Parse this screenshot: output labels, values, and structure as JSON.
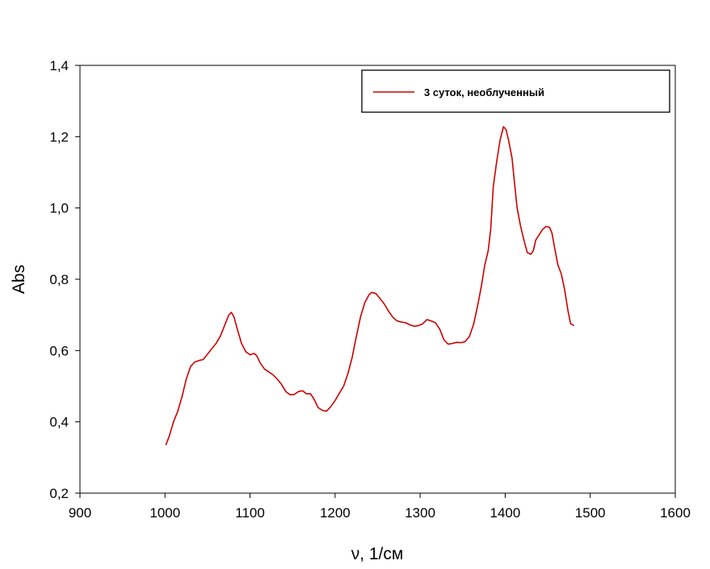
{
  "chart_data": {
    "type": "line",
    "xlabel": "ν, 1/см",
    "ylabel": "Abs",
    "xlim": [
      900,
      1600
    ],
    "ylim": [
      0.2,
      1.4
    ],
    "x_ticks": [
      900,
      1000,
      1100,
      1200,
      1300,
      1400,
      1500,
      1600
    ],
    "x_tick_labels": [
      "900",
      "1000",
      "1100",
      "1200",
      "1300",
      "1400",
      "1500",
      "1600"
    ],
    "y_ticks": [
      0.2,
      0.4,
      0.6,
      0.8,
      1.0,
      1.2,
      1.4
    ],
    "y_tick_labels": [
      "0,2",
      "0,4",
      "0,6",
      "0,8",
      "1,0",
      "1,2",
      "1,4"
    ],
    "grid": false,
    "legend_position": "top-right",
    "series": [
      {
        "name": "3 суток, необлученный",
        "color": "#cc0000",
        "points": [
          [
            1001,
            0.335
          ],
          [
            1005,
            0.36
          ],
          [
            1010,
            0.4
          ],
          [
            1015,
            0.43
          ],
          [
            1020,
            0.47
          ],
          [
            1025,
            0.52
          ],
          [
            1030,
            0.555
          ],
          [
            1035,
            0.568
          ],
          [
            1040,
            0.572
          ],
          [
            1045,
            0.575
          ],
          [
            1050,
            0.59
          ],
          [
            1055,
            0.605
          ],
          [
            1060,
            0.62
          ],
          [
            1065,
            0.64
          ],
          [
            1070,
            0.67
          ],
          [
            1075,
            0.7
          ],
          [
            1078,
            0.707
          ],
          [
            1081,
            0.695
          ],
          [
            1085,
            0.66
          ],
          [
            1090,
            0.62
          ],
          [
            1095,
            0.597
          ],
          [
            1100,
            0.588
          ],
          [
            1105,
            0.592
          ],
          [
            1108,
            0.585
          ],
          [
            1112,
            0.565
          ],
          [
            1117,
            0.548
          ],
          [
            1122,
            0.54
          ],
          [
            1127,
            0.532
          ],
          [
            1132,
            0.52
          ],
          [
            1137,
            0.505
          ],
          [
            1142,
            0.485
          ],
          [
            1147,
            0.476
          ],
          [
            1152,
            0.477
          ],
          [
            1157,
            0.485
          ],
          [
            1162,
            0.487
          ],
          [
            1166,
            0.479
          ],
          [
            1171,
            0.479
          ],
          [
            1175,
            0.465
          ],
          [
            1180,
            0.44
          ],
          [
            1185,
            0.432
          ],
          [
            1190,
            0.43
          ],
          [
            1195,
            0.443
          ],
          [
            1200,
            0.46
          ],
          [
            1205,
            0.48
          ],
          [
            1210,
            0.5
          ],
          [
            1215,
            0.535
          ],
          [
            1220,
            0.58
          ],
          [
            1225,
            0.64
          ],
          [
            1230,
            0.695
          ],
          [
            1235,
            0.735
          ],
          [
            1240,
            0.757
          ],
          [
            1243,
            0.763
          ],
          [
            1248,
            0.76
          ],
          [
            1253,
            0.745
          ],
          [
            1258,
            0.73
          ],
          [
            1263,
            0.71
          ],
          [
            1268,
            0.693
          ],
          [
            1273,
            0.683
          ],
          [
            1278,
            0.68
          ],
          [
            1283,
            0.678
          ],
          [
            1288,
            0.672
          ],
          [
            1293,
            0.668
          ],
          [
            1298,
            0.67
          ],
          [
            1303,
            0.675
          ],
          [
            1308,
            0.687
          ],
          [
            1313,
            0.683
          ],
          [
            1318,
            0.678
          ],
          [
            1323,
            0.66
          ],
          [
            1328,
            0.63
          ],
          [
            1333,
            0.618
          ],
          [
            1338,
            0.62
          ],
          [
            1343,
            0.623
          ],
          [
            1348,
            0.622
          ],
          [
            1353,
            0.625
          ],
          [
            1358,
            0.64
          ],
          [
            1363,
            0.675
          ],
          [
            1368,
            0.73
          ],
          [
            1372,
            0.78
          ],
          [
            1376,
            0.84
          ],
          [
            1380,
            0.88
          ],
          [
            1383,
            0.94
          ],
          [
            1386,
            1.06
          ],
          [
            1390,
            1.13
          ],
          [
            1394,
            1.19
          ],
          [
            1398,
            1.228
          ],
          [
            1401,
            1.22
          ],
          [
            1404,
            1.19
          ],
          [
            1408,
            1.14
          ],
          [
            1411,
            1.07
          ],
          [
            1414,
            1.0
          ],
          [
            1418,
            0.95
          ],
          [
            1422,
            0.91
          ],
          [
            1426,
            0.875
          ],
          [
            1430,
            0.87
          ],
          [
            1433,
            0.88
          ],
          [
            1436,
            0.91
          ],
          [
            1440,
            0.925
          ],
          [
            1444,
            0.94
          ],
          [
            1448,
            0.948
          ],
          [
            1452,
            0.946
          ],
          [
            1455,
            0.93
          ],
          [
            1458,
            0.89
          ],
          [
            1462,
            0.84
          ],
          [
            1466,
            0.815
          ],
          [
            1470,
            0.77
          ],
          [
            1474,
            0.71
          ],
          [
            1477,
            0.675
          ],
          [
            1481,
            0.67
          ]
        ]
      }
    ]
  }
}
